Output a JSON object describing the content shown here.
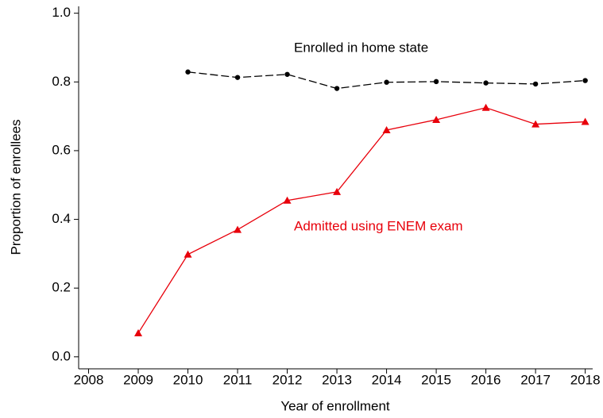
{
  "chart_data": {
    "type": "line",
    "x_label": "Year of enrollment",
    "y_label": "Proportion of enrollees",
    "x": [
      2009,
      2010,
      2011,
      2012,
      2013,
      2014,
      2015,
      2016,
      2017,
      2018
    ],
    "series": [
      {
        "name": "Enrolled in home state",
        "color": "#000000",
        "dash": true,
        "marker": "circle",
        "values": [
          null,
          0.829,
          0.813,
          0.822,
          0.781,
          0.799,
          0.801,
          0.797,
          0.794,
          0.804
        ]
      },
      {
        "name": "Admitted using ENEM exam",
        "color": "#e8000b",
        "dash": false,
        "marker": "triangle",
        "values": [
          0.069,
          0.298,
          0.37,
          0.455,
          0.48,
          0.66,
          0.69,
          0.725,
          0.677,
          0.684
        ]
      }
    ],
    "xlim": [
      2007.8,
      2018.15
    ],
    "xticks": [
      2008,
      2009,
      2010,
      2011,
      2012,
      2013,
      2014,
      2015,
      2016,
      2017,
      2018
    ],
    "ylim": [
      -0.035,
      1.02
    ],
    "yticks": [
      {
        "value": 0,
        "label": "0.0"
      },
      0.2,
      0.4,
      0.6,
      0.8,
      {
        "value": 1,
        "label": "1.0"
      }
    ],
    "grid": false
  }
}
